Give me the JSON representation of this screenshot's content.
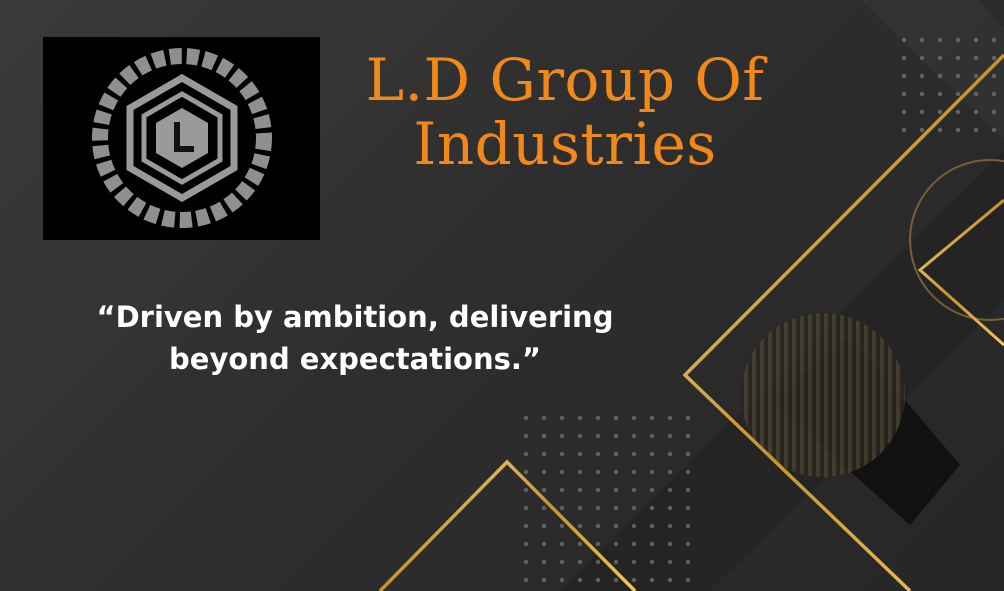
{
  "logo": {
    "icon": "hexagon-l-logo-icon",
    "colors": {
      "ring_text": "#9a9a9a",
      "background": "#000000"
    }
  },
  "title": {
    "line1": "L.D Group Of",
    "line2": "Industries",
    "color": "#f0891a"
  },
  "quote": {
    "text": "“Driven by ambition, delivering beyond expectations.”",
    "color": "#ffffff"
  },
  "theme": {
    "background": "#2f2f2f",
    "accent_gold": "#d4a437"
  }
}
